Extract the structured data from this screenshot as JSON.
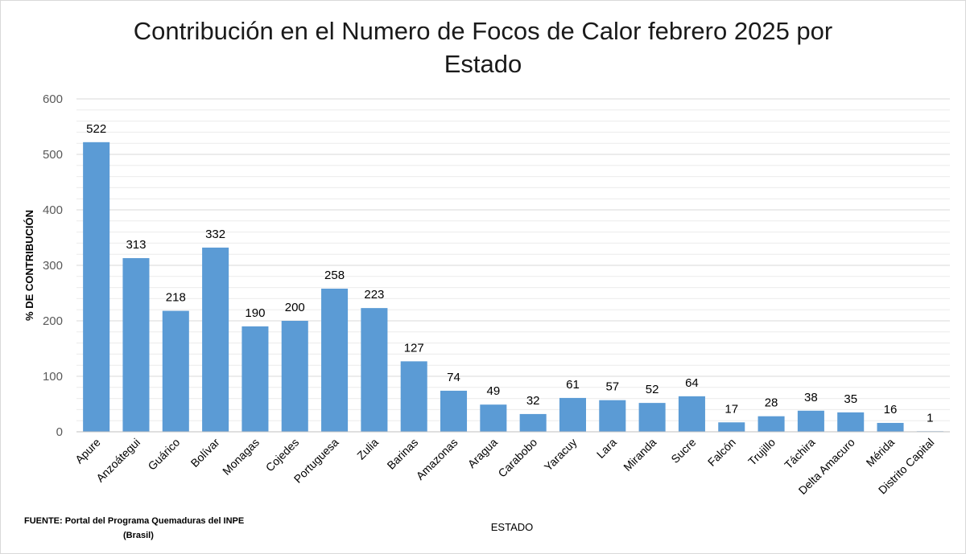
{
  "chart_data": {
    "type": "bar",
    "title_line1": "Contribución en el Numero de Focos de Calor  febrero 2025 por",
    "title_line2": "Estado",
    "xlabel": "ESTADO",
    "ylabel": "% DE CONTRIBUCIÓN",
    "ylim": [
      0,
      600
    ],
    "yticks": [
      0,
      100,
      200,
      300,
      400,
      500,
      600
    ],
    "grid": true,
    "bar_color": "#5b9bd5",
    "categories": [
      "Apure",
      "Anzoátegui",
      "Guárico",
      "Bolívar",
      "Monagas",
      "Cojedes",
      "Portuguesa",
      "Zulia",
      "Barinas",
      "Amazonas",
      "Aragua",
      "Carabobo",
      "Yaracuy",
      "Lara",
      "Miranda",
      "Sucre",
      "Falcón",
      "Trujillo",
      "Táchira",
      "Delta Amacuro",
      "Mérida",
      "Distrito Capital"
    ],
    "values": [
      522,
      313,
      218,
      332,
      190,
      200,
      258,
      223,
      127,
      74,
      49,
      32,
      61,
      57,
      52,
      64,
      17,
      28,
      38,
      35,
      16,
      1
    ]
  },
  "source": {
    "line1": "FUENTE:  Portal del Programa Quemaduras del INPE",
    "line2": "(Brasil)"
  }
}
